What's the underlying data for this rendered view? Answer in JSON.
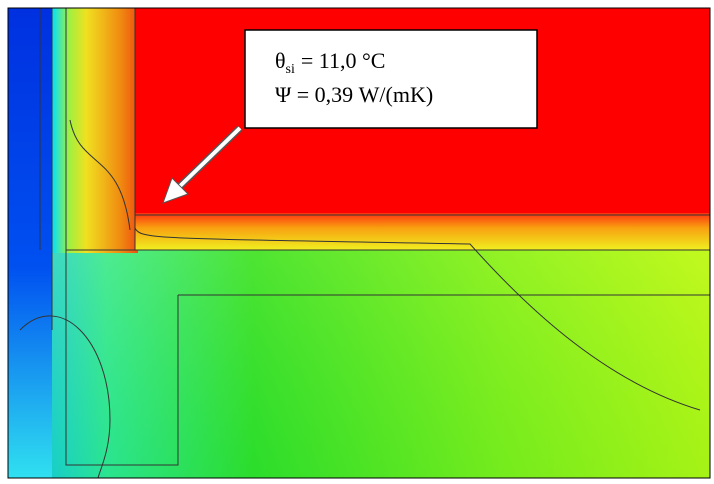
{
  "annotation": {
    "line1": {
      "symbol": "θ",
      "subscript": "si",
      "text": "= 11,0 °C"
    },
    "line2": "Ψ = 0,39 W/(mK)"
  }
}
